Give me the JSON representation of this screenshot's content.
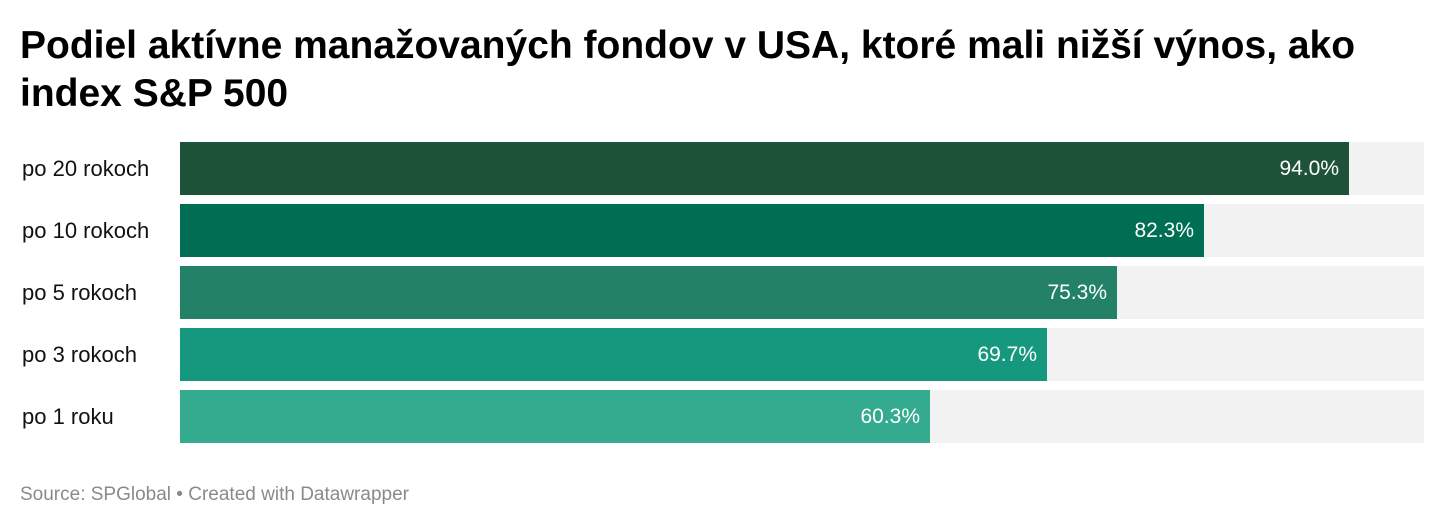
{
  "chart_data": {
    "type": "bar",
    "orientation": "horizontal",
    "title": "Podiel aktívne manažovaných fondov v USA, ktoré mali nižší výnos, ako index S&P 500",
    "categories": [
      "po 20 rokoch",
      "po 10 rokoch",
      "po 5 rokoch",
      "po 3 rokoch",
      "po 1 roku"
    ],
    "values": [
      94.0,
      82.3,
      75.3,
      69.7,
      60.3
    ],
    "value_labels": [
      "94.0%",
      "82.3%",
      "75.3%",
      "69.7%",
      "60.3%"
    ],
    "colors": [
      "#1e5239",
      "#006e52",
      "#228166",
      "#15987e",
      "#34ab8f"
    ],
    "track_color": "#f2f2f2",
    "xlim": [
      0,
      100
    ],
    "grid": false,
    "legend": "none"
  },
  "footer": {
    "source": "Source: SPGlobal",
    "separator": " • ",
    "credit": "Created with Datawrapper"
  }
}
